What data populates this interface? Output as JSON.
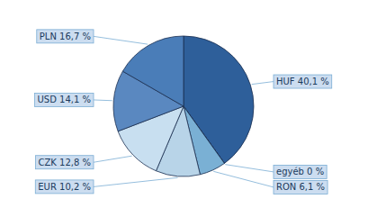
{
  "chart_data": {
    "type": "pie",
    "categories": [
      "HUF 40,1 %",
      "egyéb 0 %",
      "RON 6,1 %",
      "EUR 10,2 %",
      "CZK 12,8 %",
      "USD 14,1 %",
      "PLN 16,7 %"
    ],
    "values": [
      40.1,
      0.001,
      6.1,
      10.2,
      12.8,
      14.1,
      16.7
    ],
    "colors": [
      "#2e5f9a",
      "#aac6e0",
      "#7ab0d4",
      "#b8d4e8",
      "#c8dff0",
      "#5a88c0",
      "#4a7db8"
    ]
  }
}
